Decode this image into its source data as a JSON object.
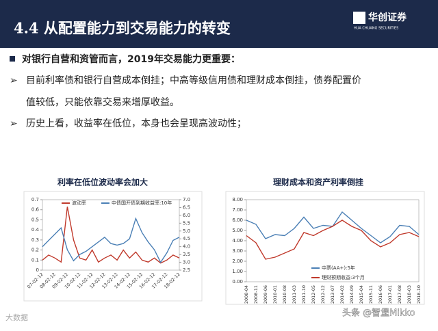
{
  "header": {
    "title": "4.4 从配置能力到交易能力的转变",
    "logo": "华创证券",
    "logo_sub": "HUA CHUANG SECURITIES"
  },
  "bullets": [
    "对银行自营和资管而言，2019年交易能力更重要：",
    "目前利率债和银行自营成本倒挂；中高等级信用债和理财成本倒挂，债券配置价",
    "值较低，只能依靠交易来增厚收益。",
    "历史上看，收益率在低位，本身也会呈现高波动性；"
  ],
  "watermark": [
    "头条 @智堡Mikko",
    "大数据"
  ],
  "chart_data": [
    {
      "type": "line",
      "title": "利率在低位波动率会加大",
      "categories": [
        "07-02-12",
        null,
        "08-02-12",
        null,
        "09-02-12",
        null,
        "10-02-12",
        null,
        "11-02-12",
        null,
        "12-02-12",
        null,
        "13-02-12",
        null,
        "14-02-12",
        null,
        "15-02-12",
        null,
        "16-02-12",
        null,
        "17-02-12",
        null,
        "18-02-12"
      ],
      "series": [
        {
          "name": "波动率",
          "color": "#c0392b",
          "values": [
            0.1,
            0.15,
            0.12,
            0.08,
            0.63,
            0.3,
            0.12,
            0.1,
            0.2,
            0.08,
            0.12,
            0.15,
            0.1,
            0.2,
            0.12,
            0.18,
            0.1,
            0.08,
            0.12,
            0.07,
            0.1,
            0.15,
            0.12
          ]
        },
        {
          "name": "中债国开债到期收益率:10年",
          "color": "#4a7fb5",
          "axis": "y2",
          "values": [
            4.0,
            4.4,
            4.8,
            5.2,
            3.8,
            3.1,
            3.5,
            3.7,
            4.0,
            4.3,
            4.6,
            4.2,
            4.1,
            4.2,
            4.5,
            5.8,
            4.9,
            4.3,
            3.8,
            3.0,
            3.6,
            4.4,
            4.6
          ]
        }
      ],
      "ylim": [
        0,
        0.7
      ],
      "yticks": [
        0,
        0.1,
        0.2,
        0.3,
        0.4,
        0.5,
        0.6,
        0.7
      ],
      "y2lim": [
        2.5,
        7.0
      ],
      "y2ticks": [
        2.5,
        {
          "value": 3,
          "label": "3.0"
        },
        3.5,
        {
          "value": 4,
          "label": "4.0"
        },
        4.5,
        {
          "value": 5,
          "label": "5.0"
        },
        5.5,
        {
          "value": 6,
          "label": "6.0"
        },
        6.5,
        {
          "value": 7,
          "label": "7.0"
        }
      ],
      "legend": "top"
    },
    {
      "type": "line",
      "title": "理财成本和资产利率倒挂",
      "categories": [
        "2008-04",
        "2008-11",
        "2009-06",
        "2010-01",
        "2010-08",
        "2011-03",
        "2011-10",
        "2012-05",
        "2012-12",
        "2013-07",
        "2014-02",
        "2014-09",
        "2015-04",
        "2015-11",
        "2016-06",
        "2017-01",
        "2017-08",
        "2018-03",
        "2018-10"
      ],
      "series": [
        {
          "name": "中票(AA+):5年",
          "color": "#4a7fb5",
          "values": [
            6.0,
            5.6,
            4.2,
            4.6,
            4.5,
            5.2,
            6.3,
            5.2,
            5.5,
            5.4,
            6.8,
            6.0,
            5.2,
            4.5,
            3.8,
            4.4,
            5.5,
            5.4,
            4.6
          ]
        },
        {
          "name": "理财预期收益:3个月",
          "color": "#c0392b",
          "values": [
            4.5,
            3.8,
            2.2,
            2.4,
            2.8,
            3.2,
            4.8,
            4.5,
            5.0,
            5.4,
            6.0,
            5.4,
            5.0,
            4.0,
            3.4,
            3.8,
            4.6,
            4.8,
            4.4
          ]
        }
      ],
      "ylim": [
        0,
        8
      ],
      "yticks": [
        {
          "value": 0,
          "label": "0.00"
        },
        {
          "value": 1,
          "label": "1.00"
        },
        {
          "value": 2,
          "label": "2.00"
        },
        {
          "value": 3,
          "label": "3.00"
        },
        {
          "value": 4,
          "label": "4.00"
        },
        {
          "value": 5,
          "label": "5.00"
        },
        {
          "value": 6,
          "label": "6.00"
        },
        {
          "value": 7,
          "label": "7.00"
        },
        {
          "value": 8,
          "label": "8.00"
        }
      ],
      "legend": "lower center"
    }
  ]
}
